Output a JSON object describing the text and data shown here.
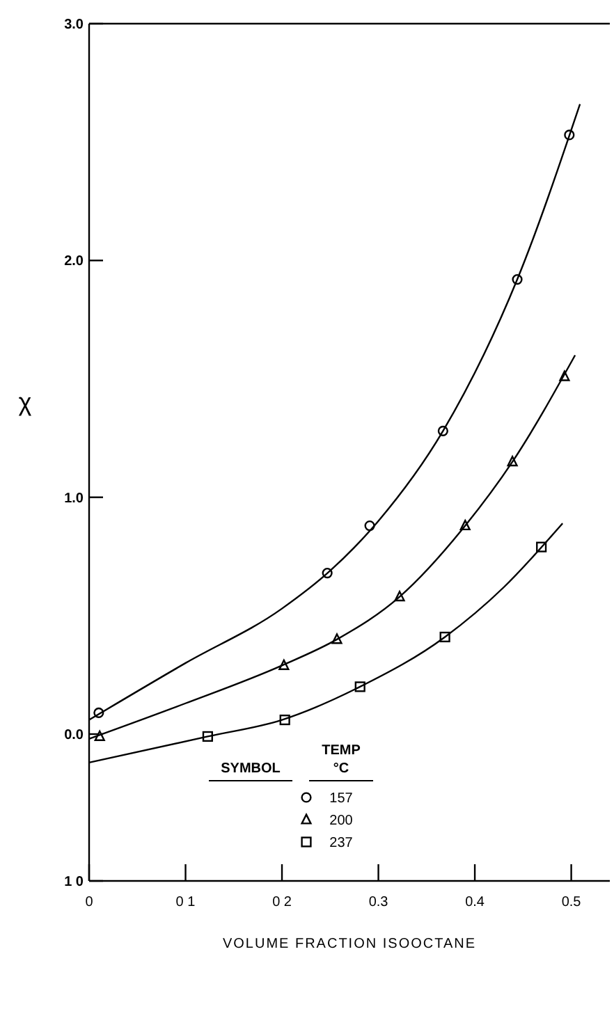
{
  "chart_data": {
    "type": "scatter",
    "xlabel": "VOLUME FRACTION ISOOCTANE",
    "ylabel": "χ",
    "legend_title": "TEMP\n°C",
    "annotations": [
      "SYMBOL"
    ],
    "legend": "bottom",
    "grid": false,
    "xlim": [
      0,
      0.54
    ],
    "xticks": [
      0,
      {
        "value": 0.1,
        "label": "0 1"
      },
      {
        "value": 0.2,
        "label": "0 2"
      },
      0.3,
      0.4,
      0.5
    ],
    "ylim": [
      -0.62,
      3
    ],
    "yticks": [
      {
        "value": -0.62,
        "label": "1 0"
      },
      {
        "value": 0,
        "label": "0.0"
      },
      {
        "value": 1,
        "label": "1.0"
      },
      {
        "value": 2,
        "label": "2.0"
      },
      {
        "value": 3,
        "label": "3.0"
      }
    ],
    "series": [
      {
        "name": "157",
        "marker": "circle",
        "color": "#000000",
        "x": [
          0.01,
          0.247,
          0.291,
          0.367,
          0.444,
          0.498
        ],
        "values": [
          0.09,
          0.68,
          0.88,
          1.28,
          1.92,
          2.53
        ]
      },
      {
        "name": "200",
        "marker": "triangle",
        "color": "#000000",
        "x": [
          0.011,
          0.202,
          0.257,
          0.322,
          0.39,
          0.439,
          0.493
        ],
        "values": [
          -0.01,
          0.29,
          0.4,
          0.58,
          0.88,
          1.15,
          1.51
        ]
      },
      {
        "name": "237",
        "marker": "square",
        "color": "#000000",
        "x": [
          0.123,
          0.203,
          0.281,
          0.369,
          0.469
        ],
        "values": [
          -0.01,
          0.06,
          0.2,
          0.41,
          0.79
        ]
      },
      {
        "type": "line",
        "marker": "none",
        "color": "#000000",
        "x": [
          0,
          0.1,
          0.2,
          0.25,
          0.3,
          0.367,
          0.444,
          0.509
        ],
        "values": [
          0.06,
          0.3,
          0.53,
          0.69,
          0.9,
          1.28,
          1.92,
          2.66
        ]
      },
      {
        "type": "line",
        "marker": "none",
        "color": "#000000",
        "x": [
          0,
          0.1,
          0.2,
          0.257,
          0.322,
          0.39,
          0.439,
          0.504
        ],
        "values": [
          -0.02,
          0.13,
          0.29,
          0.4,
          0.58,
          0.88,
          1.15,
          1.6
        ]
      },
      {
        "type": "line",
        "marker": "none",
        "color": "#000000",
        "x": [
          0,
          0.123,
          0.2,
          0.281,
          0.369,
          0.43,
          0.491
        ],
        "values": [
          -0.12,
          -0.01,
          0.06,
          0.2,
          0.41,
          0.62,
          0.89
        ]
      }
    ]
  }
}
